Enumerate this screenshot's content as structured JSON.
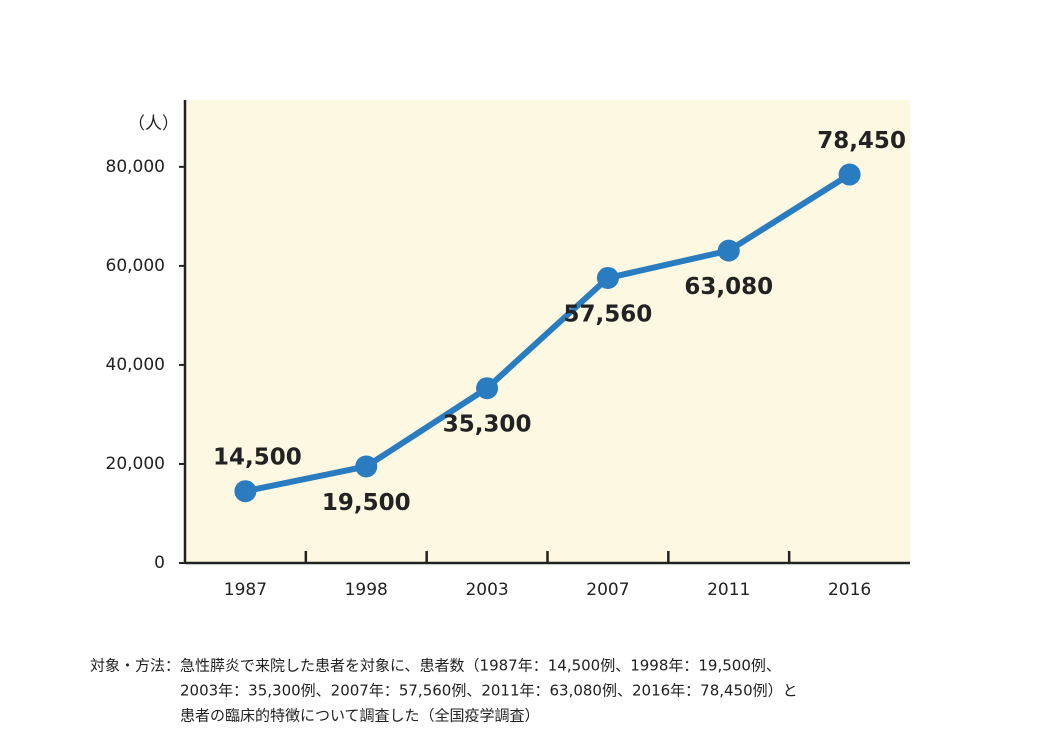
{
  "chart_data": {
    "type": "line",
    "y_label": "（人）",
    "categories": [
      "1987",
      "1998",
      "2003",
      "2007",
      "2011",
      "2016"
    ],
    "values": [
      14500,
      19500,
      35300,
      57560,
      63080,
      78450
    ],
    "value_labels": [
      "14,500",
      "19,500",
      "35,300",
      "57,560",
      "63,080",
      "78,450"
    ],
    "color": "#2a7cc0",
    "background": "#fdf8e2",
    "ylim": [
      0,
      93500
    ],
    "yticks": [
      0,
      {
        "value": 20000,
        "label": "20,000"
      },
      {
        "value": 40000,
        "label": "40,000"
      },
      {
        "value": 60000,
        "label": "60,000"
      },
      {
        "value": 80000,
        "label": "80,000"
      }
    ],
    "note": {
      "heading": "対象・方法：",
      "lines": [
        "急性膵炎で来院した患者を対象に、患者数（1987年：14,500例、1998年：19,500例、",
        "2003年：35,300例、2007年：57,560例、2011年：63,080例、2016年：78,450例）と",
        "患者の臨床的特徴について調査した（全国疫学調査）"
      ]
    }
  }
}
